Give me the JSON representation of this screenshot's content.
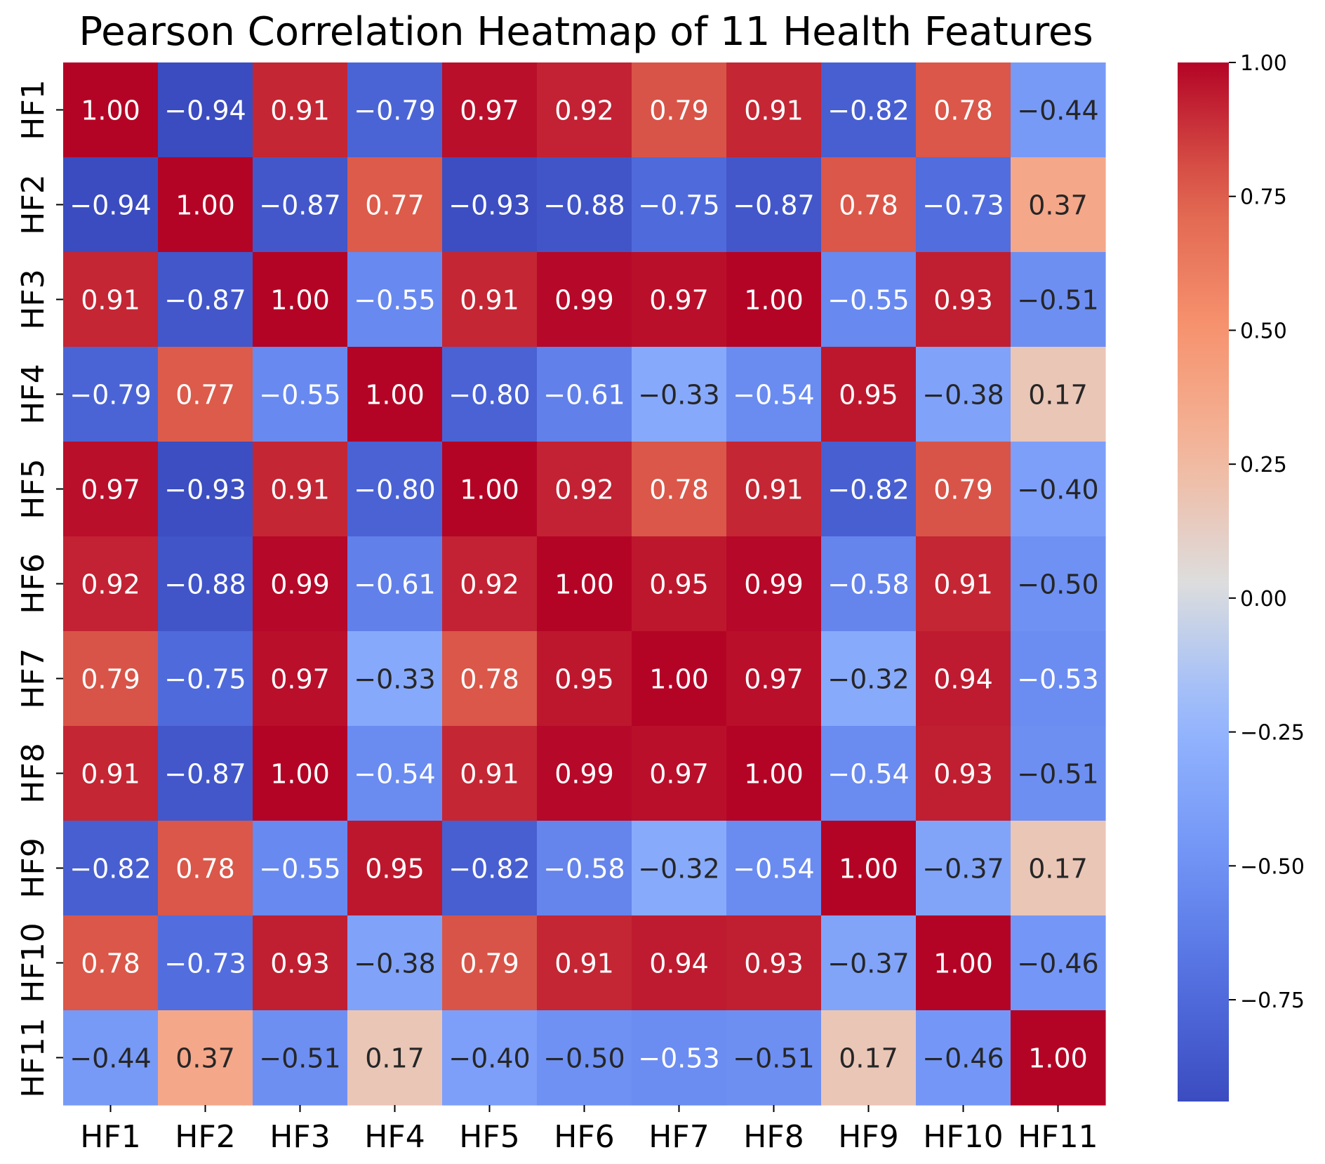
{
  "chart_data": {
    "type": "heatmap",
    "title": "Pearson Correlation Heatmap of 11 Health Features",
    "xlabel": "",
    "ylabel": "",
    "row_labels": [
      "HF1",
      "HF2",
      "HF3",
      "HF4",
      "HF5",
      "HF6",
      "HF7",
      "HF8",
      "HF9",
      "HF10",
      "HF11"
    ],
    "col_labels": [
      "HF1",
      "HF2",
      "HF3",
      "HF4",
      "HF5",
      "HF6",
      "HF7",
      "HF8",
      "HF9",
      "HF10",
      "HF11"
    ],
    "values": [
      [
        1.0,
        -0.94,
        0.91,
        -0.79,
        0.97,
        0.92,
        0.79,
        0.91,
        -0.82,
        0.78,
        -0.44
      ],
      [
        -0.94,
        1.0,
        -0.87,
        0.77,
        -0.93,
        -0.88,
        -0.75,
        -0.87,
        0.78,
        -0.73,
        0.37
      ],
      [
        0.91,
        -0.87,
        1.0,
        -0.55,
        0.91,
        0.99,
        0.97,
        1.0,
        -0.55,
        0.93,
        -0.51
      ],
      [
        -0.79,
        0.77,
        -0.55,
        1.0,
        -0.8,
        -0.61,
        -0.33,
        -0.54,
        0.95,
        -0.38,
        0.17
      ],
      [
        0.97,
        -0.93,
        0.91,
        -0.8,
        1.0,
        0.92,
        0.78,
        0.91,
        -0.82,
        0.79,
        -0.4
      ],
      [
        0.92,
        -0.88,
        0.99,
        -0.61,
        0.92,
        1.0,
        0.95,
        0.99,
        -0.58,
        0.91,
        -0.5
      ],
      [
        0.79,
        -0.75,
        0.97,
        -0.33,
        0.78,
        0.95,
        1.0,
        0.97,
        -0.32,
        0.94,
        -0.53
      ],
      [
        0.91,
        -0.87,
        1.0,
        -0.54,
        0.91,
        0.99,
        0.97,
        1.0,
        -0.54,
        0.93,
        -0.51
      ],
      [
        -0.82,
        0.78,
        -0.55,
        0.95,
        -0.82,
        -0.58,
        -0.32,
        -0.54,
        1.0,
        -0.37,
        0.17
      ],
      [
        0.78,
        -0.73,
        0.93,
        -0.38,
        0.79,
        0.91,
        0.94,
        0.93,
        -0.37,
        1.0,
        -0.46
      ],
      [
        -0.44,
        0.37,
        -0.51,
        0.17,
        -0.4,
        -0.5,
        -0.53,
        -0.51,
        0.17,
        -0.46,
        1.0
      ]
    ],
    "value_format": "0.00",
    "colormap": "coolwarm",
    "color_range": [
      -0.94,
      1.0
    ],
    "colorbar": {
      "ticks": [
        1.0,
        0.75,
        0.5,
        0.25,
        0.0,
        -0.25,
        -0.5,
        -0.75
      ],
      "tick_labels": [
        "1.00",
        "0.75",
        "0.50",
        "0.25",
        "0.00",
        "−0.25",
        "−0.50",
        "−0.75"
      ]
    },
    "grid": false,
    "legend": "colorbar-right"
  }
}
